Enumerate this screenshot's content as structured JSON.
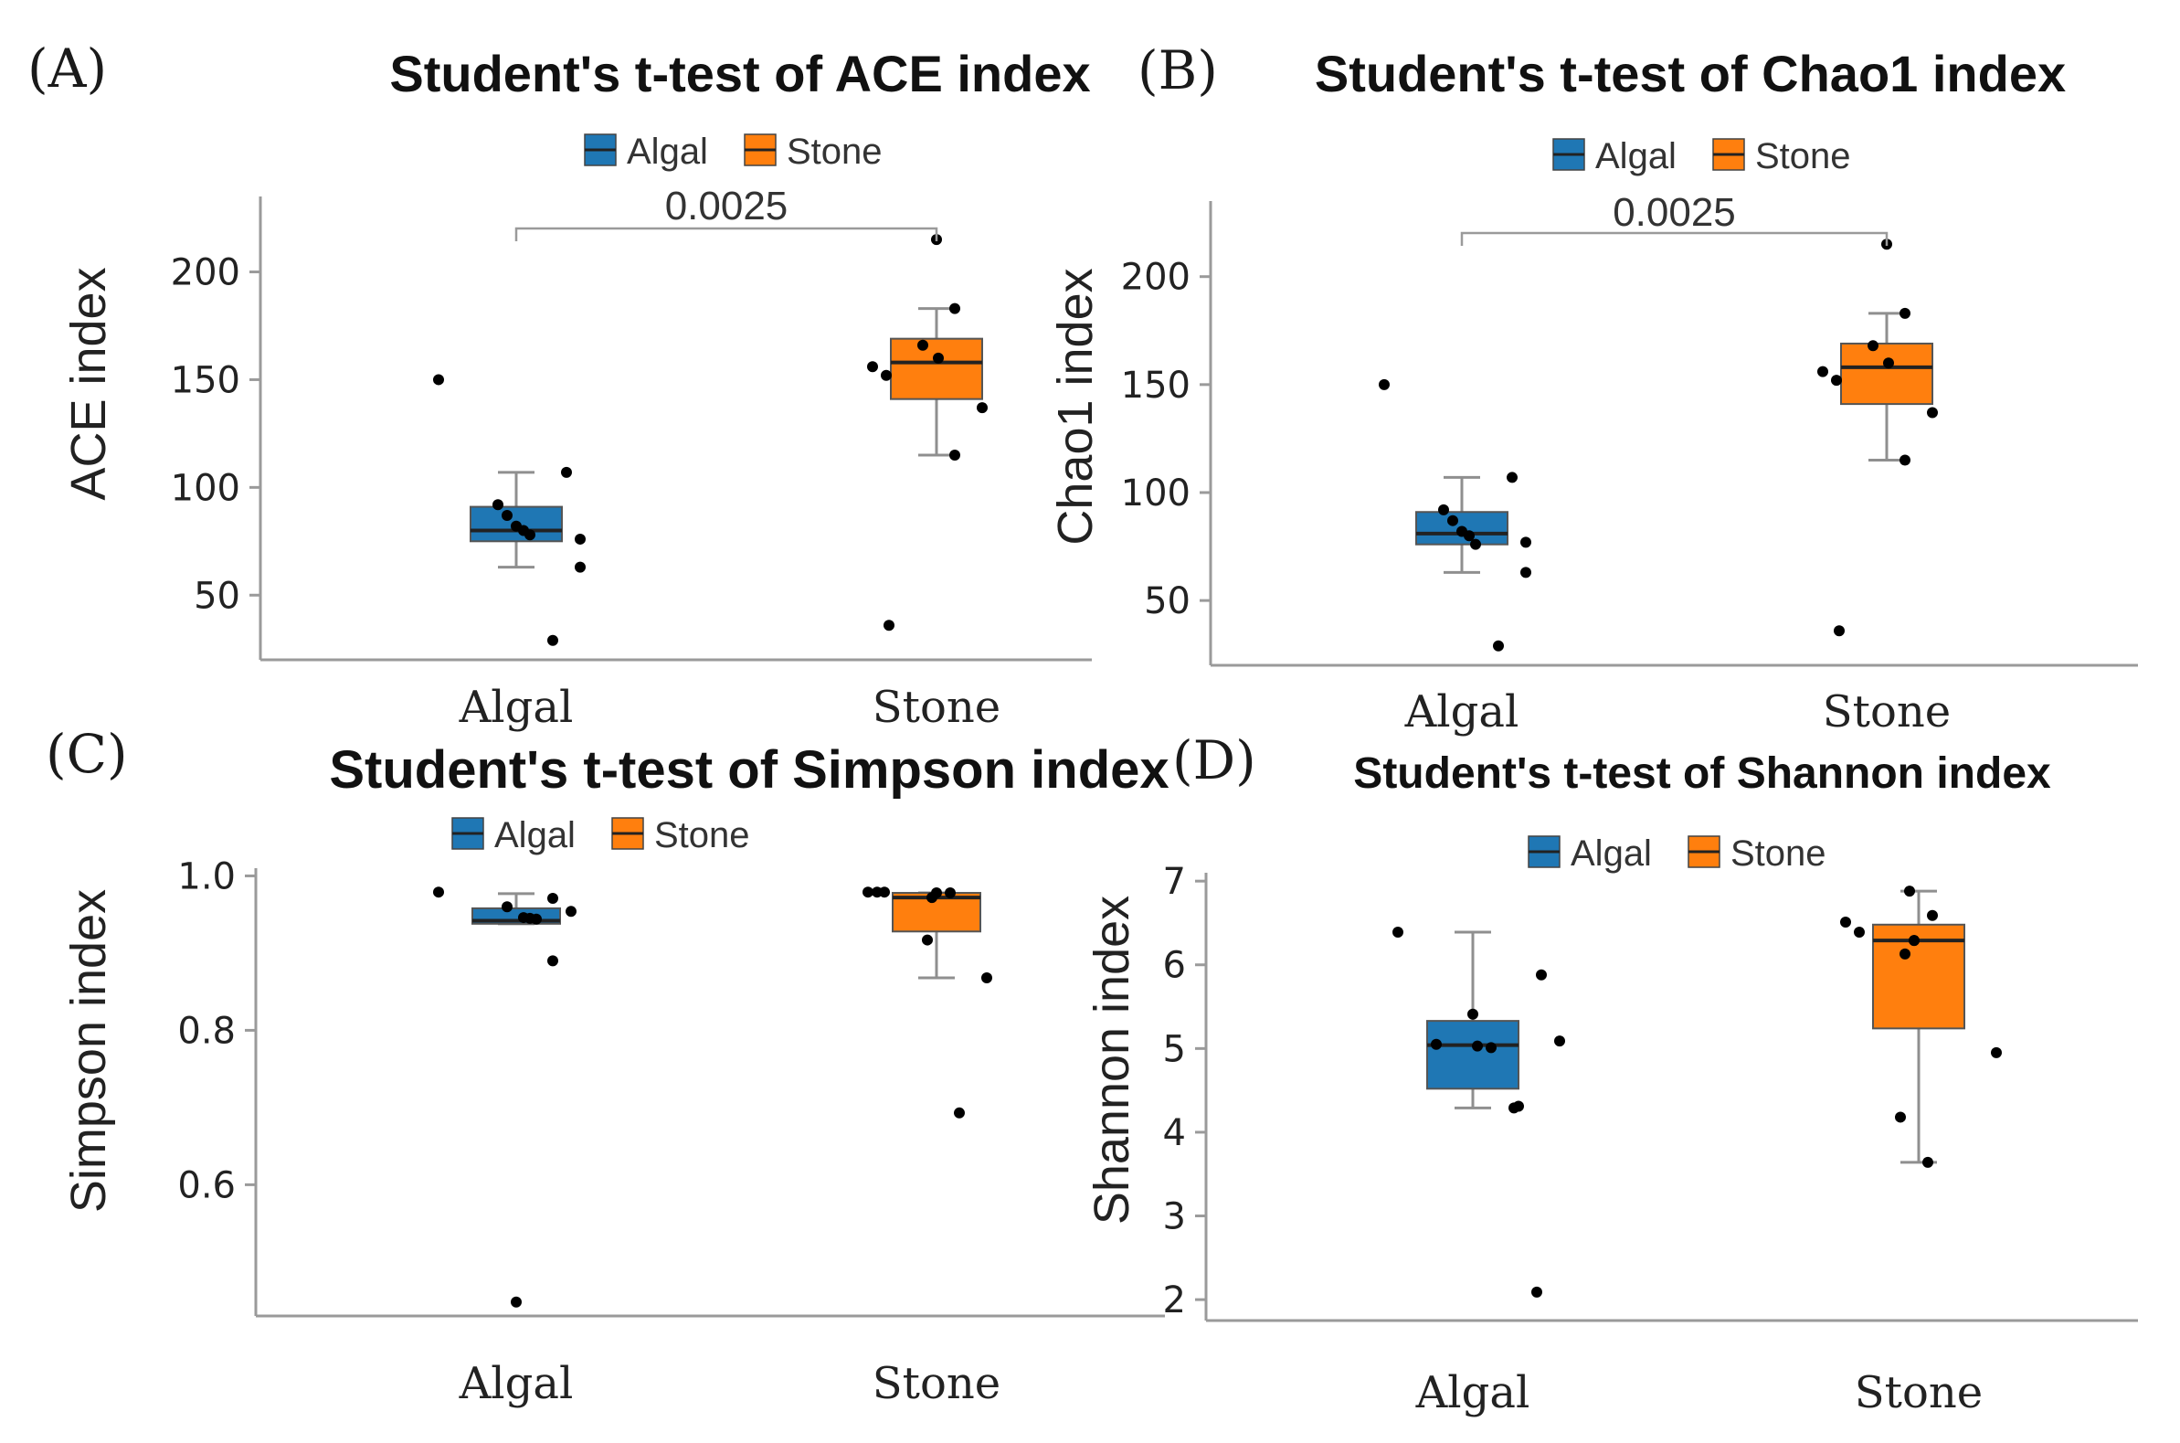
{
  "colors": {
    "Algal": "#1f77b4",
    "Stone": "#ff7f0e"
  },
  "chart_data": [
    {
      "panel": "(A)",
      "type": "box",
      "title": "Student's t-test of ACE index",
      "xlabel": "",
      "ylabel": "ACE index",
      "categories": [
        "Algal",
        "Stone"
      ],
      "legend": [
        "Algal",
        "Stone"
      ],
      "legend_position": "top",
      "ylim": [
        20,
        235
      ],
      "yticks": [
        "50",
        "100",
        "150",
        "200"
      ],
      "p_value": "0.0025",
      "boxes": [
        {
          "name": "Algal",
          "q1": 75,
          "median": 80,
          "q3": 91,
          "whisker_low": 63,
          "whisker_high": 107
        },
        {
          "name": "Stone",
          "q1": 141,
          "median": 158,
          "q3": 169,
          "whisker_low": 115,
          "whisker_high": 183
        }
      ],
      "points": [
        {
          "group": "Algal",
          "values": [
            150,
            92,
            87,
            82,
            80,
            78,
            107,
            76,
            63,
            29
          ]
        },
        {
          "group": "Stone",
          "values": [
            215,
            183,
            166,
            160,
            156,
            152,
            137,
            115,
            36
          ]
        }
      ]
    },
    {
      "panel": "(B)",
      "type": "box",
      "title": "Student's t-test of Chao1 index",
      "xlabel": "",
      "ylabel": "Chao1 index",
      "categories": [
        "Algal",
        "Stone"
      ],
      "legend": [
        "Algal",
        "Stone"
      ],
      "legend_position": "top",
      "ylim": [
        20,
        235
      ],
      "yticks": [
        "50",
        "100",
        "150",
        "200"
      ],
      "p_value": "0.0025",
      "boxes": [
        {
          "name": "Algal",
          "q1": 76,
          "median": 81,
          "q3": 91,
          "whisker_low": 63,
          "whisker_high": 107
        },
        {
          "name": "Stone",
          "q1": 141,
          "median": 158,
          "q3": 169,
          "whisker_low": 115,
          "whisker_high": 183
        }
      ],
      "points": [
        {
          "group": "Algal",
          "values": [
            150,
            92,
            87,
            82,
            80,
            76,
            107,
            77,
            63,
            29
          ]
        },
        {
          "group": "Stone",
          "values": [
            215,
            183,
            168,
            160,
            156,
            152,
            137,
            115,
            36
          ]
        }
      ]
    },
    {
      "panel": "(C)",
      "type": "box",
      "title": "Student's t-test of Simpson index",
      "xlabel": "",
      "ylabel": "Simpson index",
      "categories": [
        "Algal",
        "Stone"
      ],
      "legend": [
        "Algal",
        "Stone"
      ],
      "legend_position": "top",
      "ylim": [
        0.43,
        1.01
      ],
      "yticks": [
        "0.6",
        "0.8",
        "1.0"
      ],
      "boxes": [
        {
          "name": "Algal",
          "q1": 0.938,
          "median": 0.942,
          "q3": 0.958,
          "whisker_low": 0.938,
          "whisker_high": 0.977
        },
        {
          "name": "Stone",
          "q1": 0.928,
          "median": 0.972,
          "q3": 0.978,
          "whisker_low": 0.868,
          "whisker_high": 0.978
        }
      ],
      "points": [
        {
          "group": "Algal",
          "values": [
            0.979,
            0.96,
            0.946,
            0.945,
            0.944,
            0.971,
            0.954,
            0.89,
            0.448
          ]
        },
        {
          "group": "Stone",
          "values": [
            0.979,
            0.979,
            0.979,
            0.978,
            0.978,
            0.972,
            0.917,
            0.868,
            0.693
          ]
        }
      ]
    },
    {
      "panel": "(D)",
      "type": "box",
      "title": "Student's t-test of Shannon index",
      "xlabel": "",
      "ylabel": "Shannon index",
      "categories": [
        "Algal",
        "Stone"
      ],
      "legend": [
        "Algal",
        "Stone"
      ],
      "legend_position": "top",
      "ylim": [
        1.75,
        7.1
      ],
      "yticks": [
        "2",
        "3",
        "4",
        "5",
        "6",
        "7"
      ],
      "boxes": [
        {
          "name": "Algal",
          "q1": 4.52,
          "median": 5.04,
          "q3": 5.33,
          "whisker_low": 4.29,
          "whisker_high": 6.39
        },
        {
          "name": "Stone",
          "q1": 5.24,
          "median": 6.29,
          "q3": 6.48,
          "whisker_low": 3.64,
          "whisker_high": 6.88
        }
      ],
      "points": [
        {
          "group": "Algal",
          "values": [
            6.39,
            5.41,
            5.05,
            5.03,
            5.01,
            5.88,
            5.09,
            4.31,
            4.29,
            2.09
          ]
        },
        {
          "group": "Stone",
          "values": [
            6.88,
            6.59,
            6.51,
            6.39,
            6.29,
            6.29,
            6.13,
            4.95,
            4.18,
            3.64
          ]
        }
      ]
    }
  ]
}
